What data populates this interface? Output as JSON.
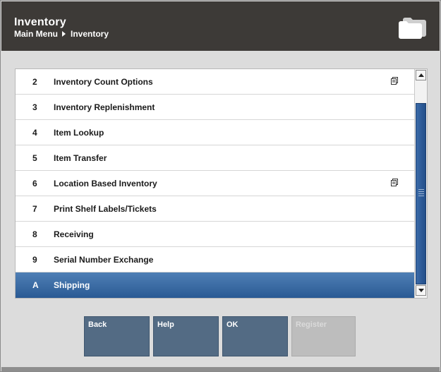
{
  "header": {
    "title": "Inventory",
    "breadcrumb": [
      "Main Menu",
      "Inventory"
    ]
  },
  "menu": {
    "items": [
      {
        "key": "2",
        "label": "Inventory Count Options",
        "submenu_icon": true
      },
      {
        "key": "3",
        "label": "Inventory Replenishment",
        "submenu_icon": false
      },
      {
        "key": "4",
        "label": "Item Lookup",
        "submenu_icon": false
      },
      {
        "key": "5",
        "label": "Item Transfer",
        "submenu_icon": false
      },
      {
        "key": "6",
        "label": "Location Based Inventory",
        "submenu_icon": true
      },
      {
        "key": "7",
        "label": "Print Shelf Labels/Tickets",
        "submenu_icon": false
      },
      {
        "key": "8",
        "label": "Receiving",
        "submenu_icon": false
      },
      {
        "key": "9",
        "label": "Serial Number Exchange",
        "submenu_icon": false
      },
      {
        "key": "A",
        "label": "Shipping",
        "submenu_icon": false,
        "selected": true
      }
    ]
  },
  "buttons": {
    "back": "Back",
    "help": "Help",
    "ok": "OK",
    "register": "Register"
  },
  "colors": {
    "header_bg": "#3d3a37",
    "selection": "#2a5a94",
    "button_bg": "#536b84",
    "button_disabled": "#bdbdbd"
  }
}
